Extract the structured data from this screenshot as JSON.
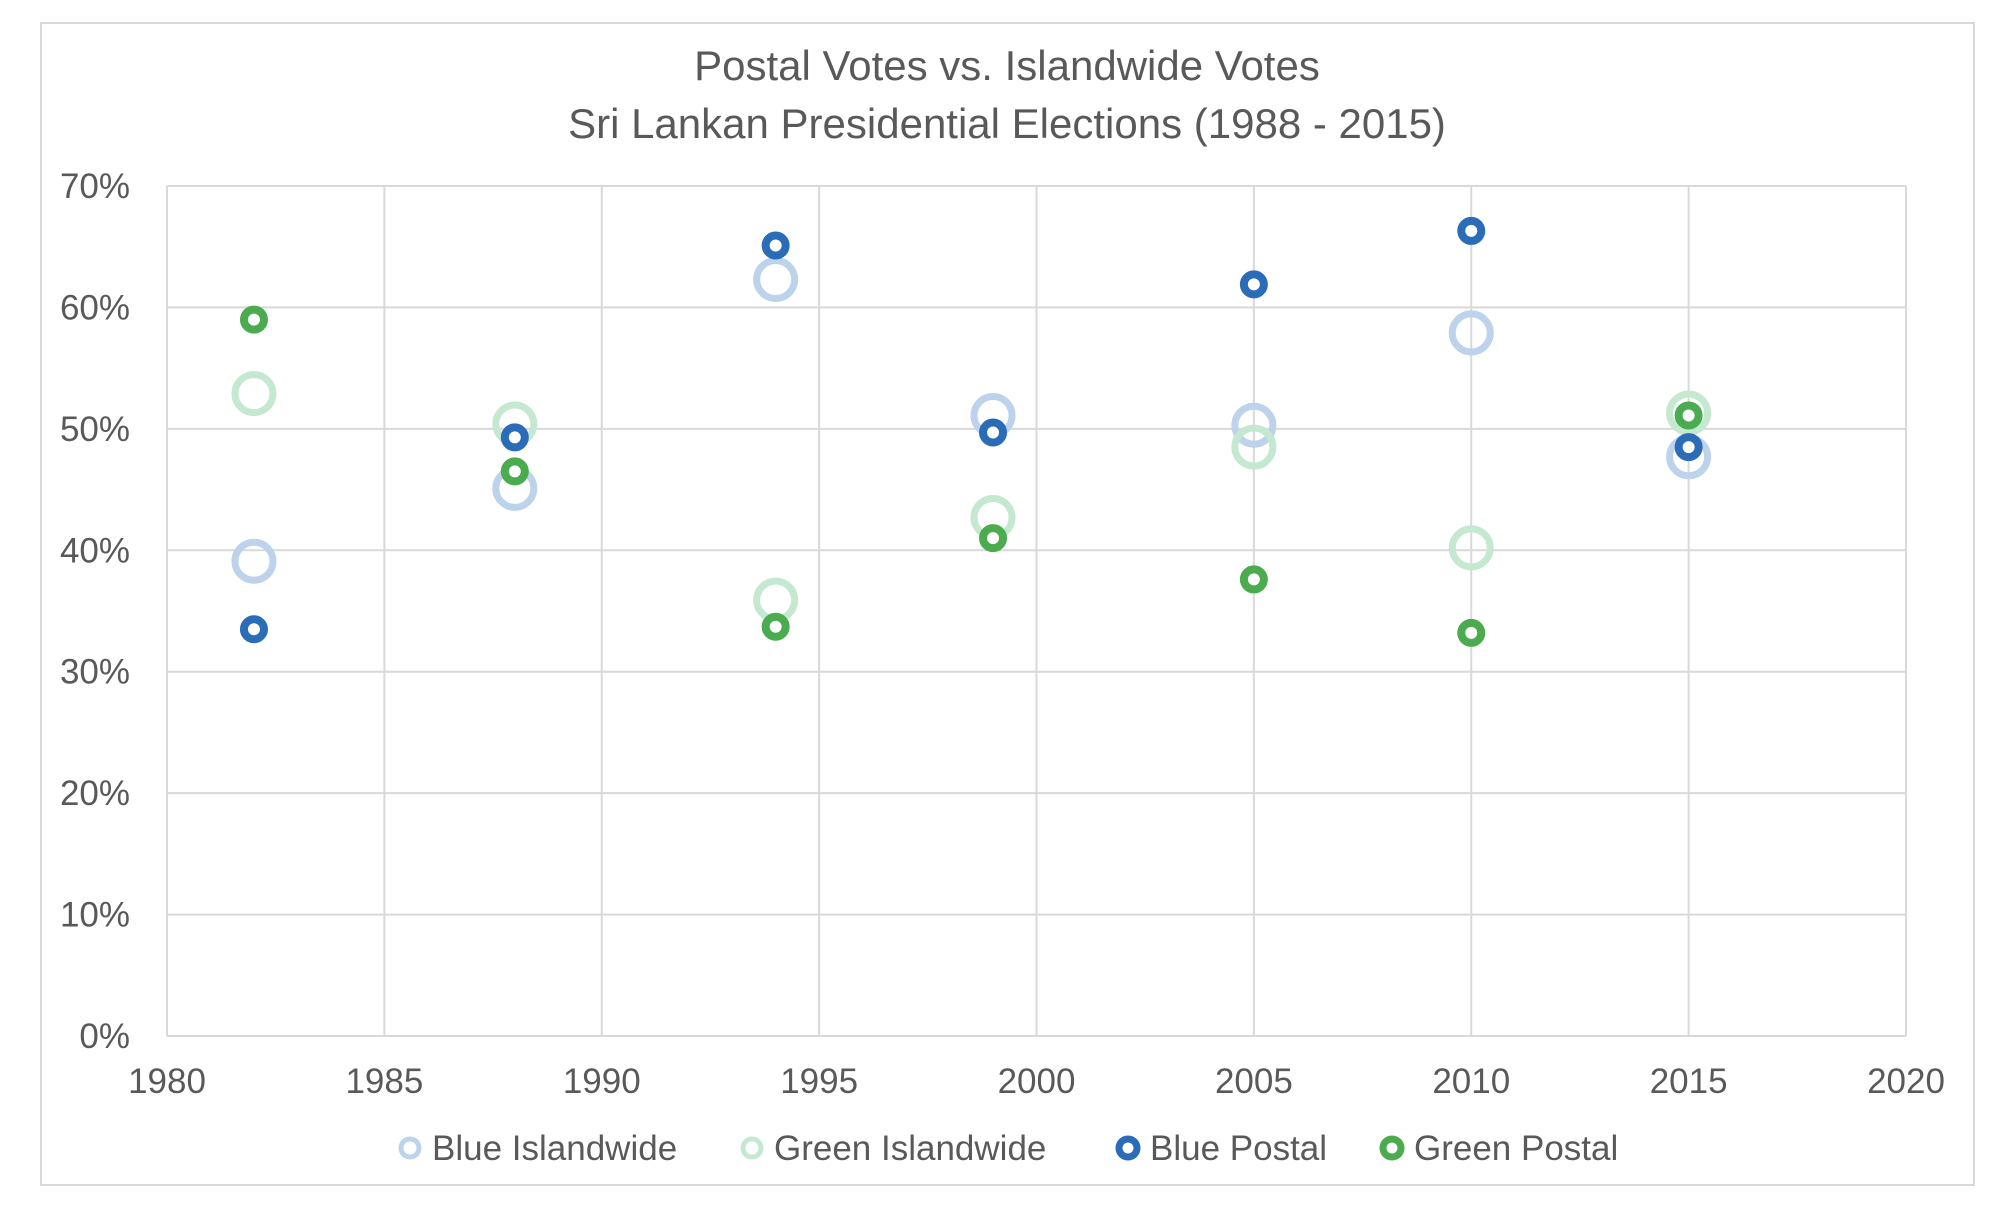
{
  "chart_data": {
    "type": "scatter",
    "title": "Postal Votes vs. Islandwide Votes",
    "subtitle": "Sri Lankan Presidential Elections (1988 - 2015)",
    "xlabel": "",
    "ylabel": "",
    "xlim": [
      1980,
      2020
    ],
    "ylim": [
      0,
      70
    ],
    "x_ticks": [
      "1980",
      "1985",
      "1990",
      "1995",
      "2000",
      "2005",
      "2010",
      "2015",
      "2020"
    ],
    "y_ticks": [
      "0%",
      "10%",
      "20%",
      "30%",
      "40%",
      "50%",
      "60%",
      "70%"
    ],
    "grid": true,
    "legend_position": "bottom",
    "x": [
      1982,
      1988,
      1994,
      1999,
      2005,
      2010,
      2015
    ],
    "series": [
      {
        "name": "Blue Islandwide",
        "color": "#bdd3ec",
        "marker": "large-ring",
        "values": [
          39.1,
          45.1,
          62.3,
          51.1,
          50.3,
          57.9,
          47.7
        ]
      },
      {
        "name": "Green Islandwide",
        "color": "#c5e8d1",
        "marker": "large-ring",
        "values": [
          52.9,
          50.4,
          35.9,
          42.7,
          48.5,
          40.2,
          51.3
        ]
      },
      {
        "name": "Blue Postal",
        "color": "#2b6cb8",
        "marker": "small-ring",
        "values": [
          33.5,
          49.3,
          65.1,
          49.7,
          61.9,
          66.3,
          48.5
        ]
      },
      {
        "name": "Green Postal",
        "color": "#4aab4f",
        "marker": "small-ring",
        "values": [
          59.0,
          46.5,
          33.7,
          41.0,
          37.6,
          33.2,
          51.1
        ]
      }
    ]
  }
}
